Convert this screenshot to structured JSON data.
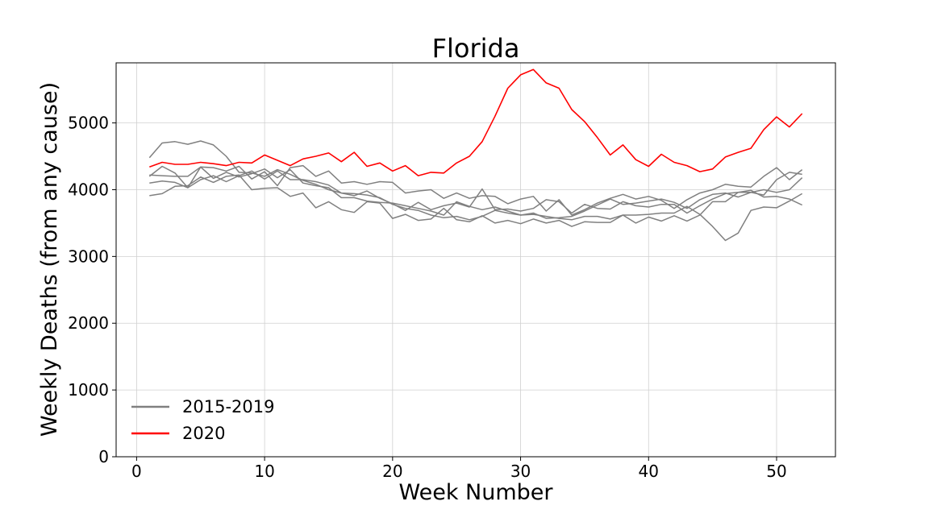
{
  "chart_data": {
    "type": "line",
    "title": "Florida",
    "xlabel": "Week Number",
    "ylabel": "Weekly Deaths (from any cause)",
    "xlim": [
      -1.6,
      54.6
    ],
    "ylim": [
      0,
      5900
    ],
    "xticks": [
      0,
      10,
      20,
      30,
      40,
      50
    ],
    "yticks": [
      0,
      1000,
      2000,
      3000,
      4000,
      5000
    ],
    "grid": true,
    "legend_position": "lower-left",
    "legend": [
      {
        "label": "2015-2019",
        "color": "#808080"
      },
      {
        "label": "2020",
        "color": "#ff0000"
      }
    ],
    "series": [
      {
        "group": "2015-2019",
        "color": "#808080",
        "x": [
          1,
          2,
          3,
          4,
          5,
          6,
          7,
          8,
          9,
          10,
          11,
          12,
          13,
          14,
          15,
          16,
          17,
          18,
          19,
          20,
          21,
          22,
          23,
          24,
          25,
          26,
          27,
          28,
          29,
          30,
          31,
          32,
          33,
          34,
          35,
          36,
          37,
          38,
          39,
          40,
          41,
          42,
          43,
          44,
          45,
          46,
          47,
          48,
          49,
          50,
          51,
          52
        ],
        "values": [
          4480,
          4700,
          4720,
          4680,
          4730,
          4670,
          4500,
          4260,
          4250,
          4200,
          4300,
          4230,
          4140,
          4080,
          4000,
          3950,
          3940,
          3920,
          3880,
          3780,
          3720,
          3690,
          3620,
          3580,
          3600,
          3550,
          3600,
          3690,
          3650,
          3620,
          3630,
          3600,
          3570,
          3550,
          3600,
          3600,
          3560,
          3620,
          3620,
          3630,
          3650,
          3650,
          3750,
          3630,
          3450,
          3240,
          3350,
          3690,
          3740,
          3730,
          3830,
          3940
        ]
      },
      {
        "group": "2015-2019",
        "color": "#808080",
        "x": [
          1,
          2,
          3,
          4,
          5,
          6,
          7,
          8,
          9,
          10,
          11,
          12,
          13,
          14,
          15,
          16,
          17,
          18,
          19,
          20,
          21,
          22,
          23,
          24,
          25,
          26,
          27,
          28,
          29,
          30,
          31,
          32,
          33,
          34,
          35,
          36,
          37,
          38,
          39,
          40,
          41,
          42,
          43,
          44,
          45,
          46,
          47,
          48,
          49,
          50,
          51,
          52
        ],
        "values": [
          4200,
          4350,
          4250,
          4030,
          4340,
          4330,
          4280,
          4350,
          4160,
          4270,
          4060,
          4330,
          4360,
          4200,
          4280,
          4100,
          4120,
          4080,
          4120,
          4110,
          3950,
          3980,
          4000,
          3870,
          3950,
          3870,
          3910,
          3900,
          3790,
          3860,
          3900,
          3680,
          3850,
          3620,
          3700,
          3800,
          3870,
          3930,
          3860,
          3900,
          3840,
          3720,
          3850,
          3950,
          4000,
          4080,
          4050,
          4040,
          4200,
          4330,
          4150,
          4300
        ]
      },
      {
        "group": "2015-2019",
        "color": "#808080",
        "x": [
          1,
          2,
          3,
          4,
          5,
          6,
          7,
          8,
          9,
          10,
          11,
          12,
          13,
          14,
          15,
          16,
          17,
          18,
          19,
          20,
          21,
          22,
          23,
          24,
          25,
          26,
          27,
          28,
          29,
          30,
          31,
          32,
          33,
          34,
          35,
          36,
          37,
          38,
          39,
          40,
          41,
          42,
          43,
          44,
          45,
          46,
          47,
          48,
          49,
          50,
          51,
          52
        ],
        "values": [
          4100,
          4130,
          4110,
          4030,
          4150,
          4210,
          4120,
          4210,
          4280,
          4160,
          4280,
          4150,
          4150,
          4120,
          4070,
          3950,
          3910,
          3980,
          3870,
          3790,
          3690,
          3810,
          3700,
          3760,
          3800,
          3740,
          4010,
          3700,
          3710,
          3680,
          3720,
          3850,
          3820,
          3650,
          3780,
          3720,
          3710,
          3820,
          3760,
          3740,
          3780,
          3780,
          3650,
          3760,
          3860,
          3940,
          3960,
          3990,
          3890,
          3900,
          3860,
          3770
        ]
      },
      {
        "group": "2015-2019",
        "color": "#808080",
        "x": [
          1,
          2,
          3,
          4,
          5,
          6,
          7,
          8,
          9,
          10,
          11,
          12,
          13,
          14,
          15,
          16,
          17,
          18,
          19,
          20,
          21,
          22,
          23,
          24,
          25,
          26,
          27,
          28,
          29,
          30,
          31,
          32,
          33,
          34,
          35,
          36,
          37,
          38,
          39,
          40,
          41,
          42,
          43,
          44,
          45,
          46,
          47,
          48,
          49,
          50,
          51,
          52
        ],
        "values": [
          3910,
          3940,
          4050,
          4060,
          4190,
          4110,
          4200,
          4220,
          4000,
          4020,
          4030,
          3900,
          3950,
          3730,
          3820,
          3700,
          3660,
          3820,
          3800,
          3570,
          3630,
          3540,
          3560,
          3720,
          3550,
          3520,
          3610,
          3500,
          3540,
          3490,
          3560,
          3500,
          3540,
          3450,
          3520,
          3510,
          3510,
          3620,
          3500,
          3590,
          3530,
          3610,
          3530,
          3620,
          3820,
          3820,
          3960,
          3960,
          3920,
          4150,
          4260,
          4230
        ]
      },
      {
        "group": "2015-2019",
        "color": "#808080",
        "x": [
          1,
          2,
          3,
          4,
          5,
          6,
          7,
          8,
          9,
          10,
          11,
          12,
          13,
          14,
          15,
          16,
          17,
          18,
          19,
          20,
          21,
          22,
          23,
          24,
          25,
          26,
          27,
          28,
          29,
          30,
          31,
          32,
          33,
          34,
          35,
          36,
          37,
          38,
          39,
          40,
          41,
          42,
          43,
          44,
          45,
          46,
          47,
          48,
          49,
          50,
          51,
          52
        ],
        "values": [
          4220,
          4210,
          4200,
          4200,
          4340,
          4170,
          4260,
          4190,
          4240,
          4310,
          4180,
          4300,
          4100,
          4060,
          4030,
          3880,
          3880,
          3830,
          3810,
          3800,
          3760,
          3720,
          3680,
          3620,
          3820,
          3750,
          3700,
          3740,
          3680,
          3620,
          3650,
          3570,
          3580,
          3600,
          3680,
          3770,
          3860,
          3780,
          3800,
          3830,
          3860,
          3810,
          3720,
          3850,
          3930,
          3950,
          3890,
          3960,
          4000,
          3960,
          4000,
          4180
        ]
      },
      {
        "group": "2020",
        "color": "#ff0000",
        "x": [
          1,
          2,
          3,
          4,
          5,
          6,
          7,
          8,
          9,
          10,
          11,
          12,
          13,
          14,
          15,
          16,
          17,
          18,
          19,
          20,
          21,
          22,
          23,
          24,
          25,
          26,
          27,
          28,
          29,
          30,
          31,
          32,
          33,
          34,
          35,
          36,
          37,
          38,
          39,
          40,
          41,
          42,
          43,
          44,
          45,
          46,
          47,
          48,
          49,
          50,
          51,
          52
        ],
        "values": [
          4340,
          4410,
          4380,
          4380,
          4410,
          4390,
          4360,
          4410,
          4400,
          4520,
          4440,
          4360,
          4460,
          4500,
          4550,
          4420,
          4560,
          4350,
          4400,
          4280,
          4360,
          4210,
          4260,
          4250,
          4400,
          4500,
          4720,
          5100,
          5520,
          5720,
          5800,
          5600,
          5520,
          5200,
          5020,
          4780,
          4520,
          4670,
          4450,
          4350,
          4530,
          4410,
          4360,
          4270,
          4310,
          4490,
          4560,
          4620,
          4900,
          5090,
          4940,
          5140
        ]
      }
    ]
  }
}
